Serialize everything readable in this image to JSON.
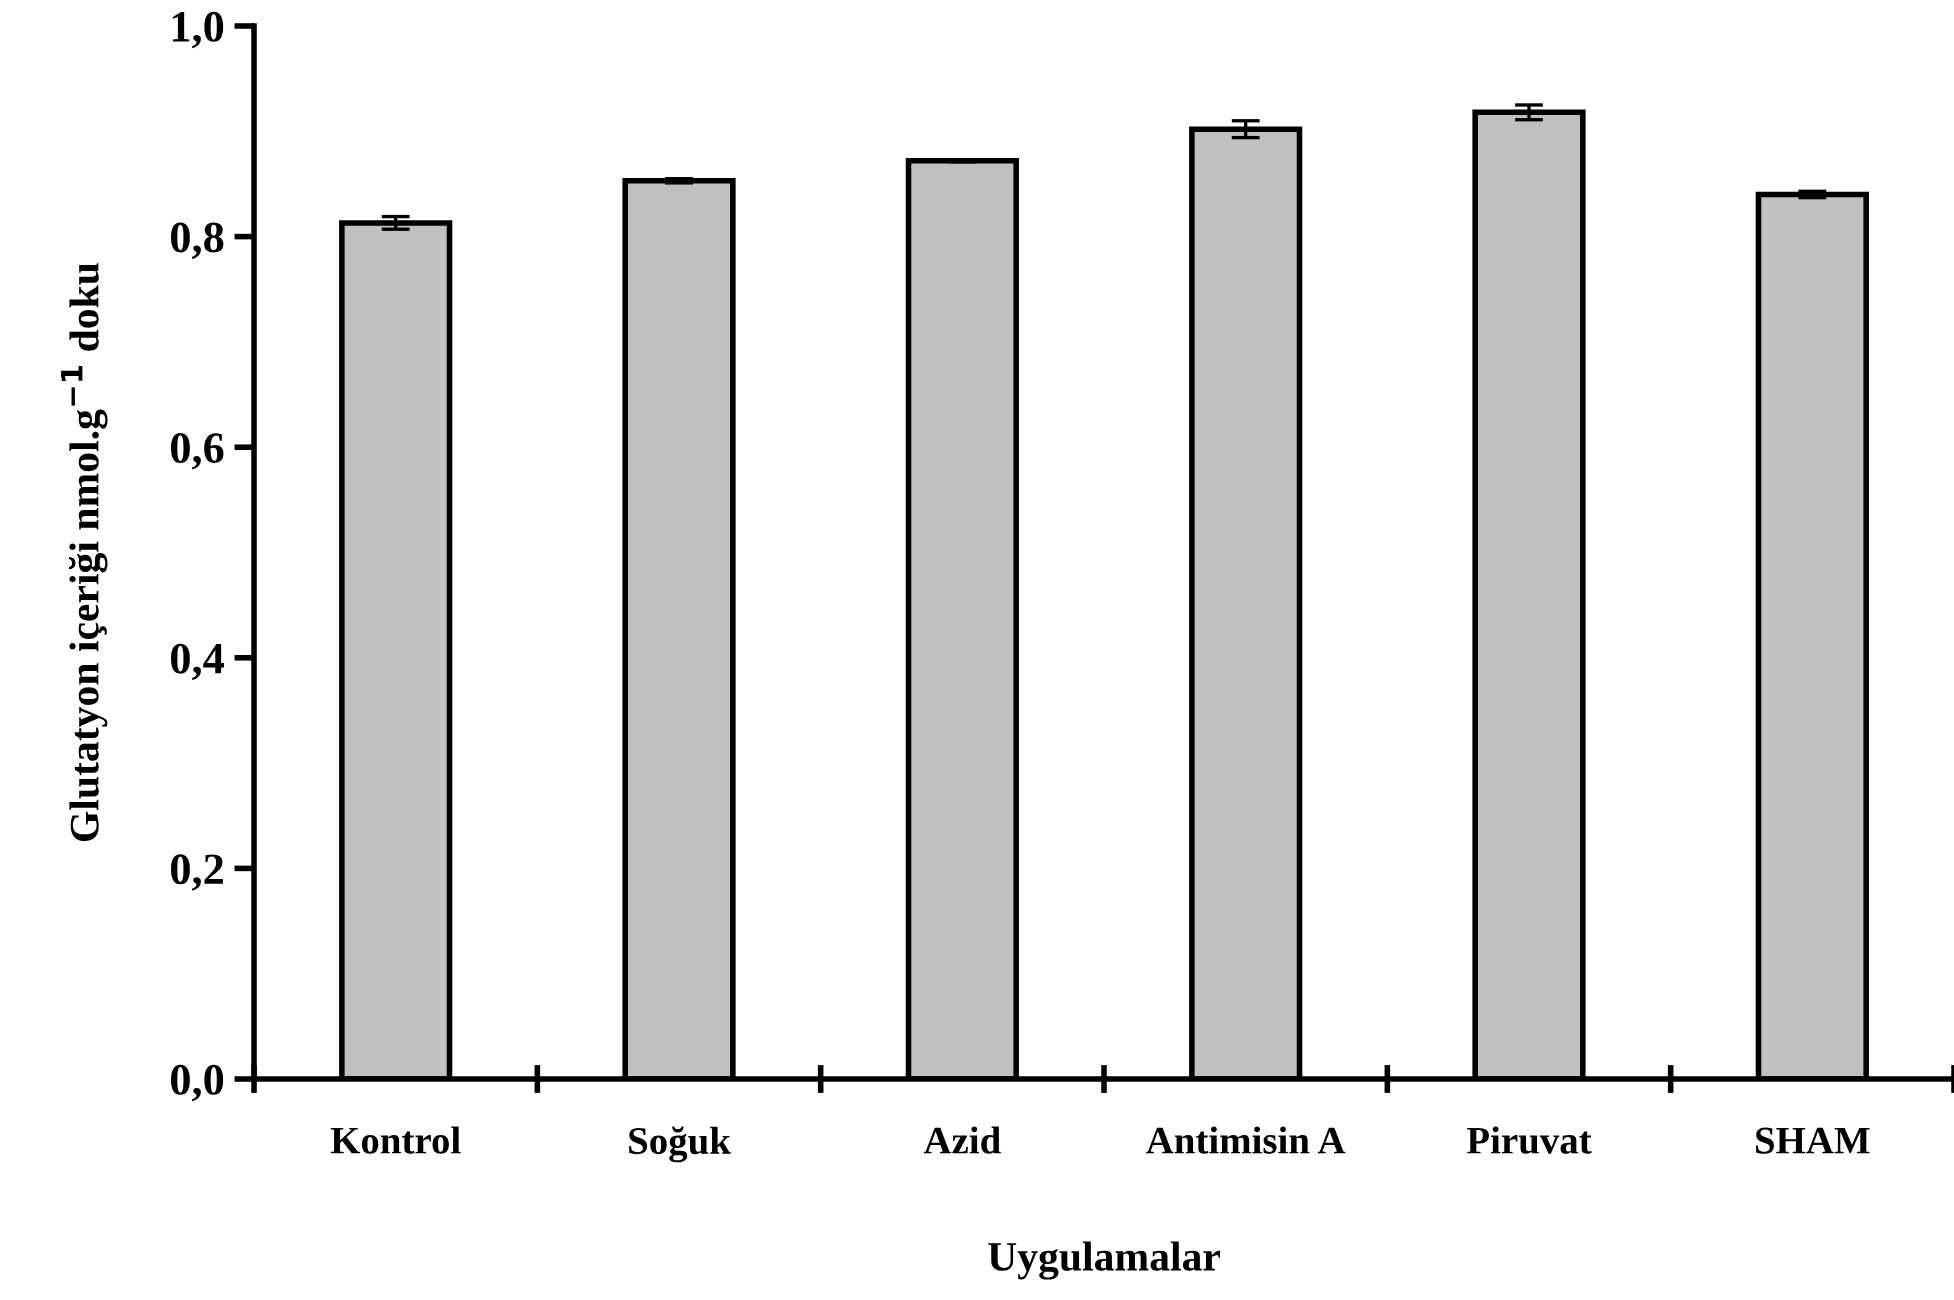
{
  "chart_data": {
    "type": "bar",
    "xlabel": "Uygulamalar",
    "ylabel": "Glutatyon içeriği nmol.g$^{−1}$ doku",
    "categories": [
      "Kontrol",
      "Soğuk",
      "Azid",
      "Antimisin A",
      "Piruvat",
      "SHAM"
    ],
    "values": [
      0.813,
      0.853,
      0.872,
      0.902,
      0.918,
      0.84
    ],
    "errors": [
      0.006,
      0.002,
      0.001,
      0.008,
      0.007,
      0.003
    ],
    "color": "#c0c0c0",
    "ylim": [
      0,
      1
    ],
    "yticks": [
      {
        "value": 0,
        "label": "0,0"
      },
      {
        "value": 0.2,
        "label": "0,2"
      },
      {
        "value": 0.4,
        "label": "0,4"
      },
      {
        "value": 0.6,
        "label": "0,6"
      },
      {
        "value": 0.8,
        "label": "0,8"
      },
      {
        "value": 1,
        "label": "1,0"
      }
    ],
    "grid": false
  }
}
